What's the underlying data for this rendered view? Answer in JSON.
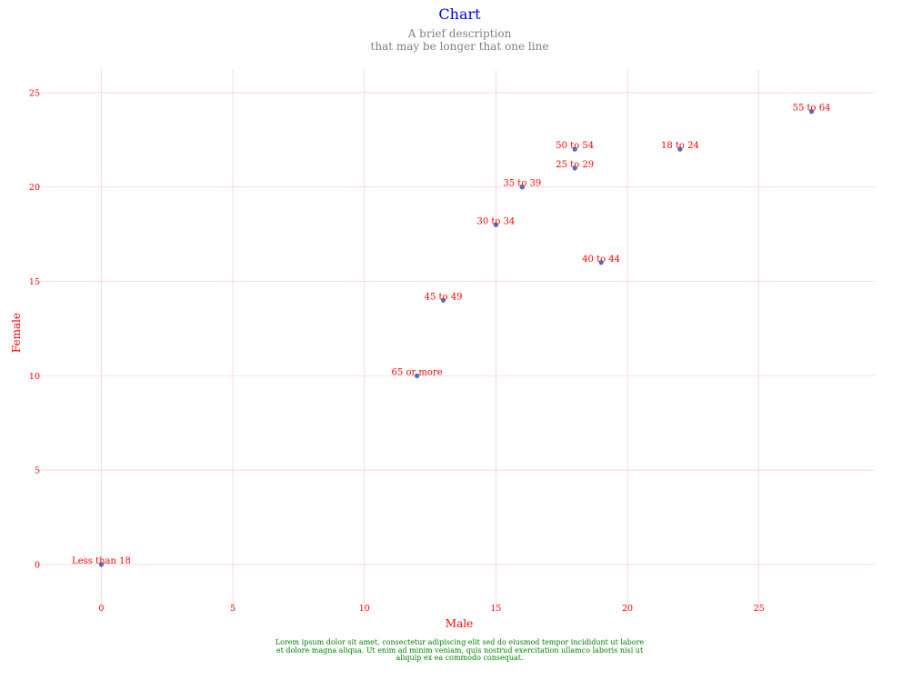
{
  "chart_data": {
    "type": "scatter",
    "title": "Chart",
    "subtitle": "A brief description\nthat may be longer that one line",
    "caption": "Lorem ipsum dolor sit amet, consectetur adipiscing elit sed do eiusmod tempor incididunt ut labore\net dolore magna aliqua. Ut enim ad minim veniam, quis nostrud exercitation ullamco laboris nisi ut\naliquip ex ea commodo consequat.",
    "xlabel": "Male",
    "ylabel": "Female",
    "xlim": [
      -2.4,
      29.4
    ],
    "ylim": [
      -2.6,
      26.2
    ],
    "xticks": [
      0,
      5,
      10,
      15,
      20,
      25
    ],
    "yticks": [
      0,
      5,
      10,
      15,
      20,
      25
    ],
    "grid": true,
    "legend": "none",
    "colors": {
      "point": "#4472c4",
      "label": "#ff0000",
      "grid": "#ffc0cb",
      "title": "#0000ff",
      "subtitle": "#808080",
      "caption": "#008000"
    },
    "points": [
      {
        "label": "Less than 18",
        "x": 0,
        "y": 0
      },
      {
        "label": "18 to 24",
        "x": 22,
        "y": 22
      },
      {
        "label": "25 to 29",
        "x": 18,
        "y": 21
      },
      {
        "label": "30 to 34",
        "x": 15,
        "y": 18
      },
      {
        "label": "35 to 39",
        "x": 16,
        "y": 20
      },
      {
        "label": "40 to 44",
        "x": 19,
        "y": 16
      },
      {
        "label": "45 to 49",
        "x": 13,
        "y": 14
      },
      {
        "label": "50 to 54",
        "x": 18,
        "y": 22
      },
      {
        "label": "55 to 64",
        "x": 27,
        "y": 24
      },
      {
        "label": "65 or more",
        "x": 12,
        "y": 10
      }
    ]
  }
}
